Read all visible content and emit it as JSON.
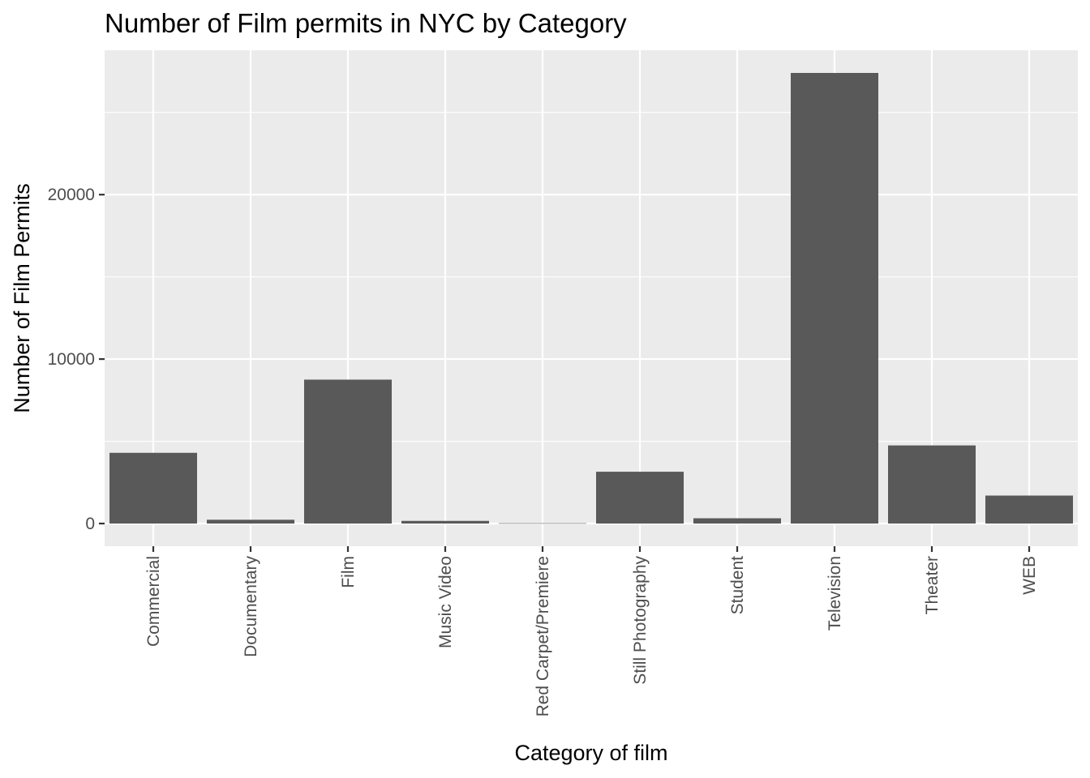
{
  "chart_data": {
    "type": "bar",
    "title": "Number of Film permits in NYC by Category",
    "xlabel": "Category of film",
    "ylabel": "Number of Film Permits",
    "categories": [
      "Commercial",
      "Documentary",
      "Film",
      "Music Video",
      "Red Carpet/Premiere",
      "Still Photography",
      "Student",
      "Television",
      "Theater",
      "WEB"
    ],
    "values": [
      4300,
      230,
      8750,
      160,
      20,
      3150,
      320,
      27400,
      4750,
      1700
    ],
    "yticks": [
      0,
      10000,
      20000
    ],
    "ytick_labels": [
      "0",
      "10000",
      "20000"
    ],
    "ylim": [
      -1380,
      28780
    ],
    "grid": true,
    "colors": {
      "bar": "#595959",
      "panel": "#ebebeb",
      "grid": "#ffffff"
    }
  }
}
